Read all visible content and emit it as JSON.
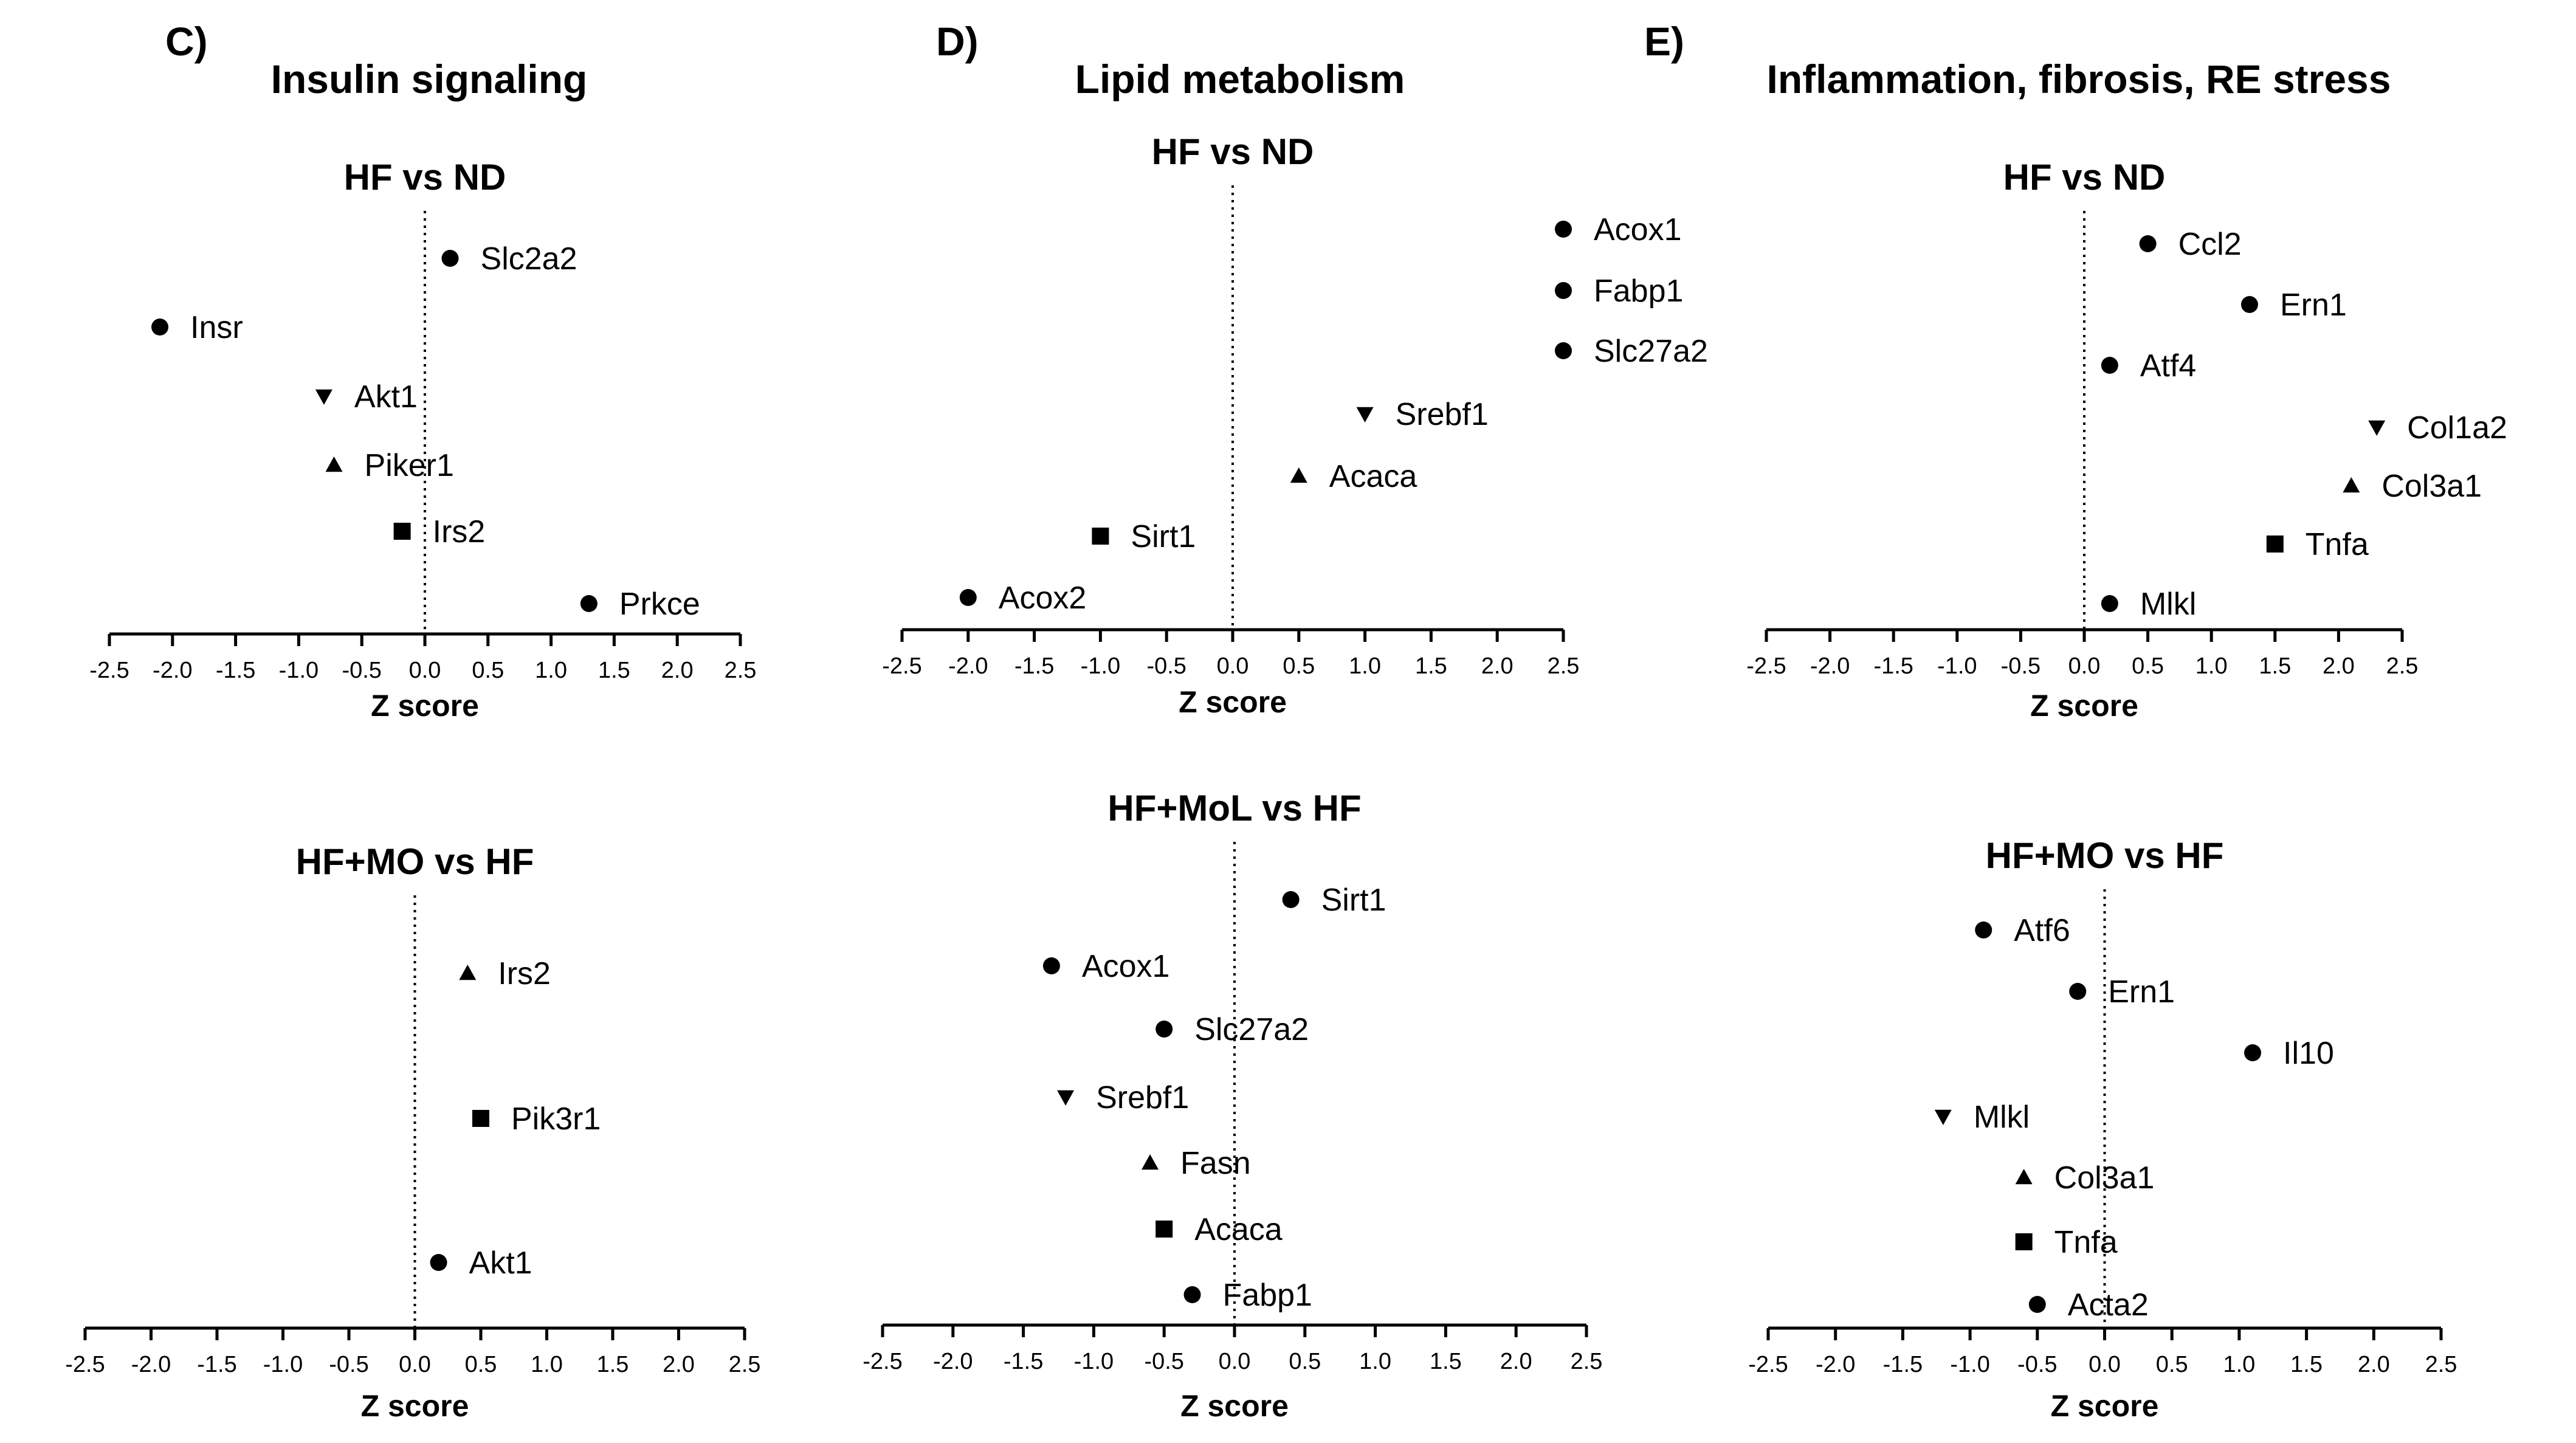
{
  "panels": [
    {
      "letter": "C)",
      "title": "Insulin signaling"
    },
    {
      "letter": "D)",
      "title": "Lipid metabolism"
    },
    {
      "letter": "E)",
      "title": "Inflammation, fibrosis, RE stress"
    }
  ],
  "chart_data": [
    {
      "type": "scatter",
      "panel": "C",
      "title": "HF vs ND",
      "xlabel": "Z score",
      "ylabel": "",
      "xlim": [
        -2.5,
        2.5
      ],
      "xticks": [
        "-2.5",
        "-2.0",
        "-1.5",
        "-1.0",
        "-0.5",
        "0.0",
        "0.5",
        "1.0",
        "1.5",
        "2.0",
        "2.5"
      ],
      "reference_line_x": 0,
      "points": [
        {
          "label": "Slc2a2",
          "x": 0.2,
          "marker": "circle"
        },
        {
          "label": "Insr",
          "x": -2.1,
          "marker": "circle"
        },
        {
          "label": "Akt1",
          "x": -0.8,
          "marker": "triangle-down"
        },
        {
          "label": "Piker1",
          "x": -0.72,
          "marker": "triangle-up"
        },
        {
          "label": "Irs2",
          "x": -0.18,
          "marker": "square"
        },
        {
          "label": "Prkce",
          "x": 1.3,
          "marker": "circle"
        }
      ]
    },
    {
      "type": "scatter",
      "panel": "D",
      "title": "HF vs ND",
      "xlabel": "Z score",
      "ylabel": "",
      "xlim": [
        -2.5,
        2.5
      ],
      "xticks": [
        "-2.5",
        "-2.0",
        "-1.5",
        "-1.0",
        "-0.5",
        "0.0",
        "0.5",
        "1.0",
        "1.5",
        "2.0",
        "2.5"
      ],
      "reference_line_x": 0,
      "points": [
        {
          "label": "Acox1",
          "x": 2.5,
          "marker": "circle"
        },
        {
          "label": "Fabp1",
          "x": 2.5,
          "marker": "circle"
        },
        {
          "label": "Slc27a2",
          "x": 2.5,
          "marker": "circle"
        },
        {
          "label": "Srebf1",
          "x": 1.0,
          "marker": "triangle-down"
        },
        {
          "label": "Acaca",
          "x": 0.5,
          "marker": "triangle-up"
        },
        {
          "label": "Sirt1",
          "x": -1.0,
          "marker": "square"
        },
        {
          "label": "Acox2",
          "x": -2.0,
          "marker": "circle"
        }
      ]
    },
    {
      "type": "scatter",
      "panel": "E",
      "title": "HF vs ND",
      "xlabel": "Z score",
      "ylabel": "",
      "xlim": [
        -2.5,
        2.5
      ],
      "xticks": [
        "-2.5",
        "-2.0",
        "-1.5",
        "-1.0",
        "-0.5",
        "0.0",
        "0.5",
        "1.0",
        "1.5",
        "2.0",
        "2.5"
      ],
      "reference_line_x": 0,
      "points": [
        {
          "label": "Ccl2",
          "x": 0.5,
          "marker": "circle"
        },
        {
          "label": "Ern1",
          "x": 1.3,
          "marker": "circle"
        },
        {
          "label": "Atf4",
          "x": 0.2,
          "marker": "circle"
        },
        {
          "label": "Col1a2",
          "x": 2.3,
          "marker": "triangle-down"
        },
        {
          "label": "Col3a1",
          "x": 2.1,
          "marker": "triangle-up"
        },
        {
          "label": "Tnfa",
          "x": 1.5,
          "marker": "square"
        },
        {
          "label": "Mlkl",
          "x": 0.2,
          "marker": "circle"
        }
      ]
    },
    {
      "type": "scatter",
      "panel": "C",
      "title": "HF+MO vs HF",
      "xlabel": "Z score",
      "ylabel": "",
      "xlim": [
        -2.5,
        2.5
      ],
      "xticks": [
        "-2.5",
        "-2.0",
        "-1.5",
        "-1.0",
        "-0.5",
        "0.0",
        "0.5",
        "1.0",
        "1.5",
        "2.0",
        "2.5"
      ],
      "reference_line_x": 0,
      "points": [
        {
          "label": "Irs2",
          "x": 0.4,
          "marker": "triangle-up"
        },
        {
          "label": "Pik3r1",
          "x": 0.5,
          "marker": "square"
        },
        {
          "label": "Akt1",
          "x": 0.18,
          "marker": "circle"
        }
      ]
    },
    {
      "type": "scatter",
      "panel": "D",
      "title": "HF+MoL vs HF",
      "xlabel": "Z score",
      "ylabel": "",
      "xlim": [
        -2.5,
        2.5
      ],
      "xticks": [
        "-2.5",
        "-2.0",
        "-1.5",
        "-1.0",
        "-0.5",
        "0.0",
        "0.5",
        "1.0",
        "1.5",
        "2.0",
        "2.5"
      ],
      "reference_line_x": 0,
      "points": [
        {
          "label": "Sirt1",
          "x": 0.4,
          "marker": "circle"
        },
        {
          "label": "Acox1",
          "x": -1.3,
          "marker": "circle"
        },
        {
          "label": "Slc27a2",
          "x": -0.5,
          "marker": "circle"
        },
        {
          "label": "Srebf1",
          "x": -1.2,
          "marker": "triangle-down"
        },
        {
          "label": "Fasn",
          "x": -0.6,
          "marker": "triangle-up"
        },
        {
          "label": "Acaca",
          "x": -0.5,
          "marker": "square"
        },
        {
          "label": "Fabp1",
          "x": -0.3,
          "marker": "circle"
        }
      ]
    },
    {
      "type": "scatter",
      "panel": "E",
      "title": "HF+MO vs HF",
      "xlabel": "Z score",
      "ylabel": "",
      "xlim": [
        -2.5,
        2.5
      ],
      "xticks": [
        "-2.5",
        "-2.0",
        "-1.5",
        "-1.0",
        "-0.5",
        "0.0",
        "0.5",
        "1.0",
        "1.5",
        "2.0",
        "2.5"
      ],
      "reference_line_x": 0,
      "points": [
        {
          "label": "Atf6",
          "x": -0.9,
          "marker": "circle"
        },
        {
          "label": "Ern1",
          "x": -0.2,
          "marker": "circle"
        },
        {
          "label": "Il10",
          "x": 1.1,
          "marker": "circle"
        },
        {
          "label": "Mlkl",
          "x": -1.2,
          "marker": "triangle-down"
        },
        {
          "label": "Col3a1",
          "x": -0.6,
          "marker": "triangle-up"
        },
        {
          "label": "Tnfa",
          "x": -0.6,
          "marker": "square"
        },
        {
          "label": "Acta2",
          "x": -0.5,
          "marker": "circle"
        }
      ]
    }
  ]
}
